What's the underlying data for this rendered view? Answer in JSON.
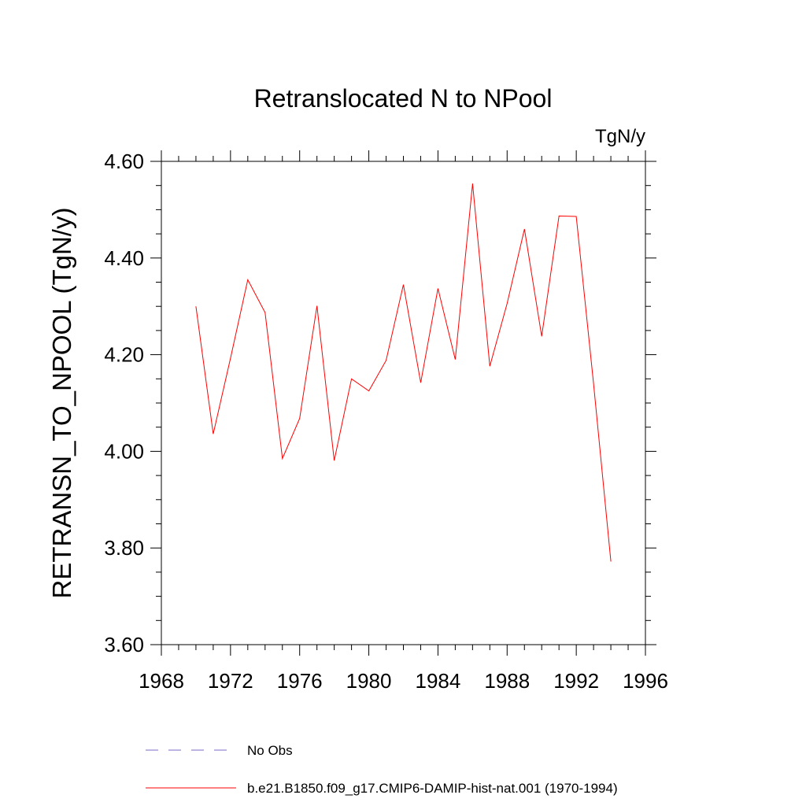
{
  "chart_data": {
    "type": "line",
    "title": "Retranslocated N to NPool",
    "units": "TgN/y",
    "xlabel": "",
    "ylabel": "RETRANSN_TO_NPOOL  (TgN/y)",
    "xlim": [
      1968,
      1996
    ],
    "ylim": [
      3.6,
      4.6
    ],
    "x_ticks": [
      1968,
      1972,
      1976,
      1980,
      1984,
      1988,
      1992,
      1996
    ],
    "x_tick_labels": [
      "1968",
      "1972",
      "1976",
      "1980",
      "1984",
      "1988",
      "1992",
      "1996"
    ],
    "y_ticks": [
      3.6,
      3.8,
      4.0,
      4.2,
      4.4,
      4.6
    ],
    "y_tick_labels": [
      "3.60",
      "3.80",
      "4.00",
      "4.20",
      "4.40",
      "4.60"
    ],
    "grid": false,
    "legend_position": "bottom",
    "series": [
      {
        "name": "b.e21.B1850.f09_g17.CMIP6-DAMIP-hist-nat.001 (1970-1994)",
        "color": "#ff0000",
        "dash": "solid",
        "x": [
          1970,
          1971,
          1972,
          1973,
          1974,
          1975,
          1976,
          1977,
          1978,
          1979,
          1980,
          1981,
          1982,
          1983,
          1984,
          1985,
          1986,
          1987,
          1988,
          1989,
          1990,
          1991,
          1992,
          1993,
          1994
        ],
        "y": [
          4.3,
          4.036,
          4.193,
          4.355,
          4.287,
          3.985,
          4.068,
          4.301,
          3.981,
          4.15,
          4.125,
          4.188,
          4.345,
          4.142,
          4.337,
          4.19,
          4.554,
          4.176,
          4.306,
          4.46,
          4.238,
          4.487,
          4.486,
          4.14,
          3.772
        ]
      }
    ],
    "legend": [
      {
        "label": "No Obs",
        "color": "#7b68c8",
        "dash": "dashed"
      },
      {
        "label": "b.e21.B1850.f09_g17.CMIP6-DAMIP-hist-nat.001 (1970-1994)",
        "color": "#ff0000",
        "dash": "solid"
      }
    ]
  }
}
